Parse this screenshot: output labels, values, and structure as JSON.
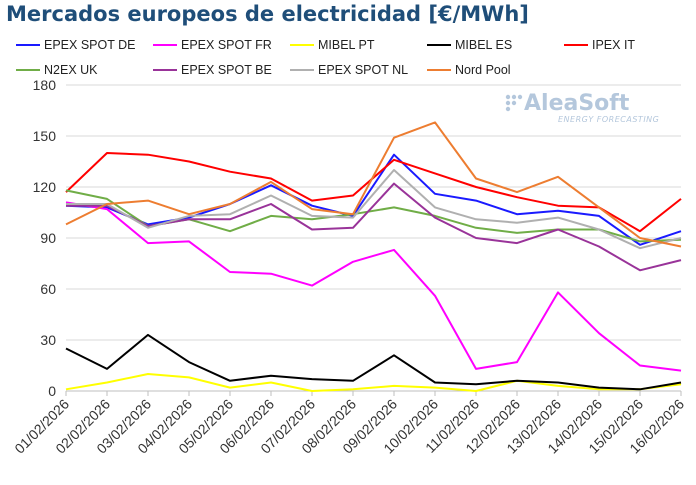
{
  "title": "Mercados europeos de electricidad [€/MWh]",
  "watermark": {
    "logo_text": "AleaSoft",
    "tagline": "ENERGY FORECASTING"
  },
  "chart_data": {
    "type": "line",
    "title": "Mercados europeos de electricidad [€/MWh]",
    "xlabel": "",
    "ylabel": "",
    "ylim": [
      0,
      180
    ],
    "yticks": [
      0,
      30,
      60,
      90,
      120,
      150,
      180
    ],
    "grid": "horizontal",
    "legend_placement": "top",
    "categories": [
      "01/02/2026",
      "02/02/2026",
      "03/02/2026",
      "04/02/2026",
      "05/02/2026",
      "06/02/2026",
      "07/02/2026",
      "08/02/2026",
      "09/02/2026",
      "10/02/2026",
      "11/02/2026",
      "12/02/2026",
      "13/02/2026",
      "14/02/2026",
      "15/02/2026",
      "16/02/2026"
    ],
    "series": [
      {
        "name": "EPEX SPOT DE",
        "color": "#1a1aff",
        "values": [
          109,
          108,
          98,
          102,
          110,
          121,
          109,
          103,
          139,
          116,
          112,
          104,
          106,
          103,
          86,
          94
        ]
      },
      {
        "name": "EPEX SPOT FR",
        "color": "#ff00ff",
        "values": [
          111,
          107,
          87,
          88,
          70,
          69,
          62,
          76,
          83,
          56,
          13,
          17,
          58,
          34,
          15,
          12
        ]
      },
      {
        "name": "MIBEL PT",
        "color": "#ffff00",
        "values": [
          1,
          5,
          10,
          8,
          2,
          5,
          0,
          1,
          3,
          2,
          0,
          6,
          3,
          1,
          1,
          4
        ]
      },
      {
        "name": "MIBEL ES",
        "color": "#000000",
        "values": [
          25,
          13,
          33,
          17,
          6,
          9,
          7,
          6,
          21,
          5,
          4,
          6,
          5,
          2,
          1,
          5
        ]
      },
      {
        "name": "IPEX IT",
        "color": "#ff0000",
        "values": [
          117,
          140,
          139,
          135,
          129,
          125,
          112,
          115,
          136,
          128,
          120,
          114,
          109,
          108,
          94,
          113
        ]
      },
      {
        "name": "N2EX UK",
        "color": "#70ad47",
        "values": [
          118,
          113,
          97,
          101,
          94,
          103,
          101,
          104,
          108,
          103,
          96,
          93,
          95,
          95,
          88,
          89
        ]
      },
      {
        "name": "EPEX SPOT BE",
        "color": "#993399",
        "values": [
          109,
          109,
          97,
          101,
          101,
          110,
          95,
          96,
          122,
          102,
          90,
          87,
          95,
          85,
          71,
          77
        ]
      },
      {
        "name": "EPEX SPOT NL",
        "color": "#b0b0b0",
        "values": [
          110,
          110,
          96,
          103,
          104,
          115,
          103,
          102,
          130,
          108,
          101,
          99,
          102,
          95,
          84,
          90
        ]
      },
      {
        "name": "Nord Pool",
        "color": "#ed7d31",
        "values": [
          98,
          110,
          112,
          104,
          110,
          123,
          107,
          104,
          149,
          158,
          125,
          117,
          126,
          108,
          90,
          85
        ]
      }
    ]
  }
}
